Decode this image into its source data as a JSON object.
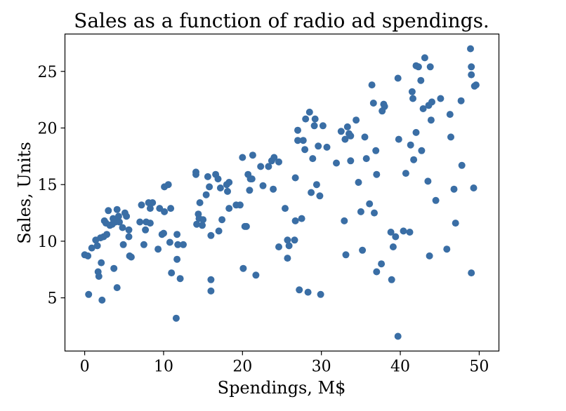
{
  "chart_data": {
    "type": "scatter",
    "title": "Sales as a function of radio ad spendings.",
    "xlabel": "Spendings, M$",
    "ylabel": "Sales, Units",
    "xlim": [
      -2.5,
      52.5
    ],
    "ylim": [
      0.3,
      28.3
    ],
    "xticks": [
      0,
      10,
      20,
      30,
      40,
      50
    ],
    "yticks": [
      5,
      10,
      15,
      20,
      25
    ],
    "grid": false,
    "marker_color": "#3a6ea5",
    "points": [
      [
        0.0,
        8.8
      ],
      [
        0.4,
        8.7
      ],
      [
        0.5,
        5.3
      ],
      [
        0.9,
        9.4
      ],
      [
        1.4,
        10.1
      ],
      [
        1.6,
        9.6
      ],
      [
        1.7,
        7.3
      ],
      [
        1.8,
        6.9
      ],
      [
        2.0,
        10.3
      ],
      [
        2.1,
        8.1
      ],
      [
        2.2,
        4.8
      ],
      [
        2.4,
        10.4
      ],
      [
        2.5,
        11.8
      ],
      [
        2.7,
        11.6
      ],
      [
        2.8,
        10.6
      ],
      [
        3.0,
        12.7
      ],
      [
        3.2,
        11.4
      ],
      [
        3.5,
        11.5
      ],
      [
        3.6,
        12.0
      ],
      [
        3.7,
        7.6
      ],
      [
        3.9,
        11.7
      ],
      [
        4.1,
        12.8
      ],
      [
        4.1,
        5.9
      ],
      [
        4.3,
        12.2
      ],
      [
        4.4,
        11.7
      ],
      [
        4.8,
        11.2
      ],
      [
        4.9,
        9.7
      ],
      [
        5.1,
        12.5
      ],
      [
        5.3,
        12.2
      ],
      [
        5.6,
        11.0
      ],
      [
        5.6,
        10.4
      ],
      [
        5.7,
        8.7
      ],
      [
        5.9,
        8.6
      ],
      [
        7.0,
        11.7
      ],
      [
        7.2,
        13.2
      ],
      [
        7.5,
        9.7
      ],
      [
        7.7,
        11.0
      ],
      [
        7.8,
        11.7
      ],
      [
        8.1,
        13.4
      ],
      [
        8.3,
        11.6
      ],
      [
        8.3,
        12.9
      ],
      [
        8.6,
        13.4
      ],
      [
        9.3,
        9.3
      ],
      [
        9.5,
        12.9
      ],
      [
        9.8,
        10.6
      ],
      [
        10.0,
        10.7
      ],
      [
        10.1,
        12.6
      ],
      [
        10.1,
        14.8
      ],
      [
        10.6,
        15.0
      ],
      [
        10.8,
        9.9
      ],
      [
        10.9,
        12.9
      ],
      [
        11.0,
        7.2
      ],
      [
        11.6,
        3.2
      ],
      [
        11.7,
        10.6
      ],
      [
        11.7,
        8.4
      ],
      [
        11.8,
        9.7
      ],
      [
        12.1,
        6.7
      ],
      [
        12.5,
        9.7
      ],
      [
        14.1,
        16.1
      ],
      [
        14.1,
        15.9
      ],
      [
        14.2,
        11.5
      ],
      [
        14.4,
        12.4
      ],
      [
        14.5,
        12.0
      ],
      [
        14.6,
        13.4
      ],
      [
        14.9,
        11.4
      ],
      [
        15.0,
        11.9
      ],
      [
        15.4,
        14.1
      ],
      [
        15.6,
        15.7
      ],
      [
        15.8,
        14.8
      ],
      [
        16.0,
        10.5
      ],
      [
        16.0,
        6.6
      ],
      [
        16.0,
        5.6
      ],
      [
        16.6,
        15.9
      ],
      [
        16.9,
        15.5
      ],
      [
        17.0,
        10.9
      ],
      [
        17.2,
        14.7
      ],
      [
        17.4,
        11.9
      ],
      [
        18.0,
        15.0
      ],
      [
        18.1,
        14.4
      ],
      [
        18.3,
        12.9
      ],
      [
        18.3,
        15.2
      ],
      [
        19.2,
        13.2
      ],
      [
        19.7,
        13.2
      ],
      [
        20.0,
        17.4
      ],
      [
        20.1,
        7.6
      ],
      [
        20.3,
        11.3
      ],
      [
        20.5,
        11.3
      ],
      [
        20.7,
        15.9
      ],
      [
        20.9,
        14.5
      ],
      [
        21.0,
        15.5
      ],
      [
        21.2,
        15.5
      ],
      [
        21.3,
        17.6
      ],
      [
        21.7,
        7.0
      ],
      [
        22.3,
        16.6
      ],
      [
        22.6,
        14.9
      ],
      [
        23.3,
        16.6
      ],
      [
        23.7,
        17.1
      ],
      [
        23.9,
        14.6
      ],
      [
        24.0,
        17.4
      ],
      [
        24.6,
        17.0
      ],
      [
        24.6,
        9.5
      ],
      [
        25.4,
        12.9
      ],
      [
        25.7,
        10.1
      ],
      [
        25.7,
        8.5
      ],
      [
        25.9,
        9.6
      ],
      [
        26.6,
        10.1
      ],
      [
        26.7,
        11.8
      ],
      [
        26.7,
        15.6
      ],
      [
        27.0,
        19.8
      ],
      [
        27.0,
        18.9
      ],
      [
        27.2,
        5.7
      ],
      [
        27.5,
        12.0
      ],
      [
        27.7,
        18.9
      ],
      [
        27.9,
        18.1
      ],
      [
        28.0,
        20.8
      ],
      [
        28.3,
        5.5
      ],
      [
        28.5,
        21.4
      ],
      [
        28.7,
        14.3
      ],
      [
        28.9,
        17.3
      ],
      [
        29.1,
        20.2
      ],
      [
        29.2,
        20.8
      ],
      [
        29.4,
        15.0
      ],
      [
        29.6,
        18.4
      ],
      [
        29.8,
        14.0
      ],
      [
        29.9,
        5.3
      ],
      [
        30.2,
        20.2
      ],
      [
        30.7,
        18.3
      ],
      [
        31.9,
        16.9
      ],
      [
        32.5,
        19.7
      ],
      [
        32.9,
        11.8
      ],
      [
        33.0,
        19.0
      ],
      [
        33.1,
        8.8
      ],
      [
        33.3,
        20.1
      ],
      [
        33.5,
        19.5
      ],
      [
        33.7,
        19.3
      ],
      [
        33.7,
        17.1
      ],
      [
        34.4,
        20.7
      ],
      [
        34.7,
        15.2
      ],
      [
        35.0,
        12.6
      ],
      [
        35.2,
        9.2
      ],
      [
        35.5,
        19.2
      ],
      [
        35.7,
        17.3
      ],
      [
        36.1,
        13.3
      ],
      [
        36.4,
        23.8
      ],
      [
        36.6,
        22.2
      ],
      [
        36.7,
        12.5
      ],
      [
        36.9,
        18.0
      ],
      [
        37.0,
        15.9
      ],
      [
        37.0,
        7.3
      ],
      [
        37.6,
        8.0
      ],
      [
        37.7,
        21.5
      ],
      [
        37.9,
        22.1
      ],
      [
        38.0,
        21.9
      ],
      [
        38.8,
        10.8
      ],
      [
        38.9,
        6.6
      ],
      [
        39.1,
        9.5
      ],
      [
        39.4,
        10.4
      ],
      [
        39.7,
        24.4
      ],
      [
        39.7,
        1.6
      ],
      [
        39.8,
        19.0
      ],
      [
        40.4,
        10.9
      ],
      [
        40.7,
        16.0
      ],
      [
        41.2,
        10.8
      ],
      [
        41.3,
        18.5
      ],
      [
        41.5,
        23.2
      ],
      [
        41.6,
        22.6
      ],
      [
        41.7,
        17.2
      ],
      [
        42.0,
        19.6
      ],
      [
        42.0,
        25.5
      ],
      [
        42.3,
        25.4
      ],
      [
        42.6,
        24.2
      ],
      [
        42.7,
        18.0
      ],
      [
        42.9,
        21.7
      ],
      [
        43.1,
        26.2
      ],
      [
        43.5,
        15.3
      ],
      [
        43.6,
        22.0
      ],
      [
        43.7,
        8.7
      ],
      [
        43.8,
        25.4
      ],
      [
        43.9,
        20.7
      ],
      [
        44.0,
        22.3
      ],
      [
        44.5,
        13.6
      ],
      [
        45.1,
        22.6
      ],
      [
        45.9,
        9.3
      ],
      [
        46.3,
        21.2
      ],
      [
        46.4,
        19.2
      ],
      [
        46.8,
        14.6
      ],
      [
        47.0,
        11.6
      ],
      [
        47.7,
        22.4
      ],
      [
        47.8,
        16.7
      ],
      [
        48.9,
        27.0
      ],
      [
        49.0,
        25.4
      ],
      [
        49.0,
        24.7
      ],
      [
        49.0,
        7.2
      ],
      [
        49.3,
        14.7
      ],
      [
        49.4,
        23.7
      ],
      [
        49.6,
        23.8
      ]
    ]
  }
}
